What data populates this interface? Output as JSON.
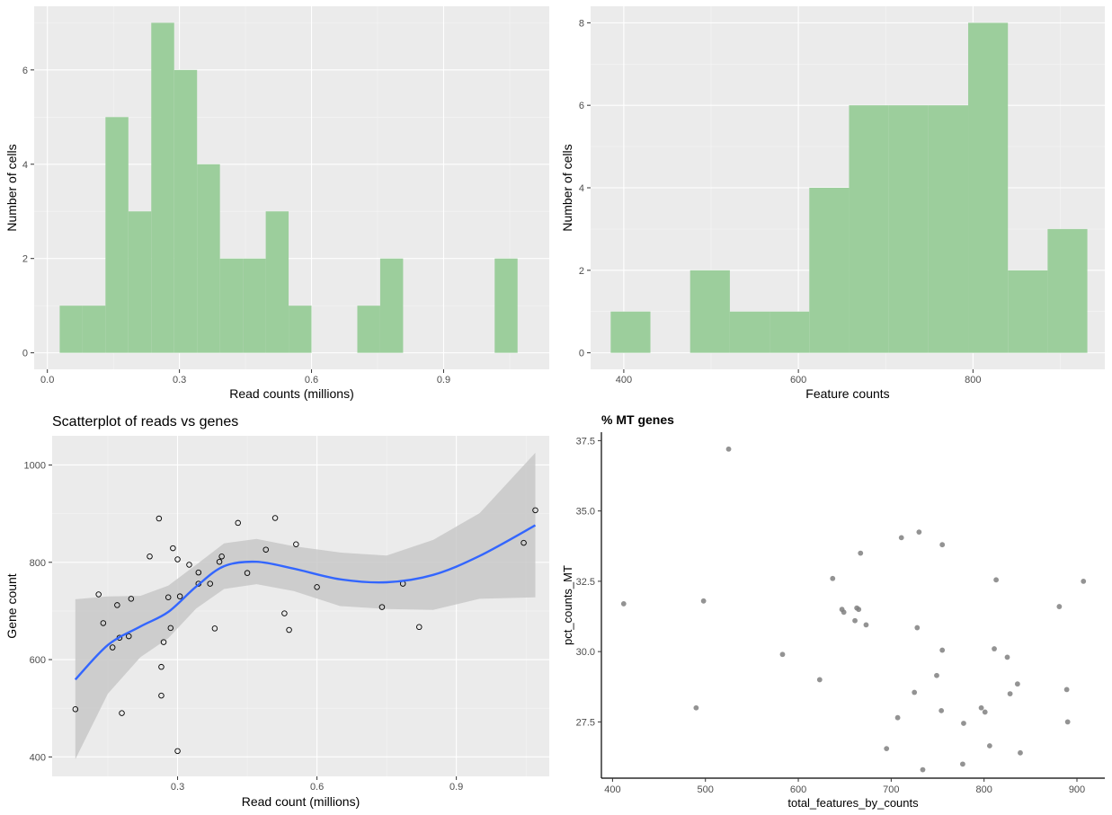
{
  "colors": {
    "panel_bg": "#EBEBEB",
    "grid_major": "#FFFFFF",
    "grid_minor": "#F5F5F5",
    "hist_fill": "#9CCE9C",
    "smooth_line": "#3366FF",
    "ribbon": "#C8C8C8",
    "scatter_point": "#808080"
  },
  "chart_data": [
    {
      "type": "bar",
      "subtype": "histogram",
      "title": "",
      "xlabel": "Read counts (millions)",
      "ylabel": "Number of cells",
      "xlim": [
        -0.03,
        1.14
      ],
      "ylim": [
        -0.35,
        7.35
      ],
      "x_ticks": [
        0.0,
        0.3,
        0.6,
        0.9
      ],
      "x_tick_labels": [
        "0.0",
        "0.3",
        "0.6",
        "0.9"
      ],
      "y_ticks": [
        0,
        2,
        4,
        6
      ],
      "y_tick_labels": [
        "0",
        "2",
        "4",
        "6"
      ],
      "bin_width": 0.052,
      "bins": [
        {
          "x0": 0.028,
          "x1": 0.08,
          "count": 1
        },
        {
          "x0": 0.08,
          "x1": 0.132,
          "count": 1
        },
        {
          "x0": 0.132,
          "x1": 0.184,
          "count": 5
        },
        {
          "x0": 0.184,
          "x1": 0.236,
          "count": 3
        },
        {
          "x0": 0.236,
          "x1": 0.288,
          "count": 7
        },
        {
          "x0": 0.288,
          "x1": 0.34,
          "count": 6
        },
        {
          "x0": 0.34,
          "x1": 0.392,
          "count": 4
        },
        {
          "x0": 0.392,
          "x1": 0.444,
          "count": 2
        },
        {
          "x0": 0.444,
          "x1": 0.496,
          "count": 2
        },
        {
          "x0": 0.496,
          "x1": 0.548,
          "count": 3
        },
        {
          "x0": 0.548,
          "x1": 0.6,
          "count": 1
        },
        {
          "x0": 0.6,
          "x1": 0.652,
          "count": 0
        },
        {
          "x0": 0.652,
          "x1": 0.704,
          "count": 0
        },
        {
          "x0": 0.704,
          "x1": 0.756,
          "count": 1
        },
        {
          "x0": 0.756,
          "x1": 0.808,
          "count": 2
        },
        {
          "x0": 0.808,
          "x1": 0.86,
          "count": 0
        },
        {
          "x0": 0.86,
          "x1": 0.912,
          "count": 0
        },
        {
          "x0": 0.912,
          "x1": 0.964,
          "count": 0
        },
        {
          "x0": 0.964,
          "x1": 1.016,
          "count": 0
        },
        {
          "x0": 1.016,
          "x1": 1.068,
          "count": 2
        }
      ]
    },
    {
      "type": "bar",
      "subtype": "histogram",
      "title": "",
      "xlabel": "Feature counts",
      "ylabel": "Number of cells",
      "xlim": [
        362,
        951
      ],
      "ylim": [
        -0.4,
        8.4
      ],
      "x_ticks": [
        400,
        600,
        800
      ],
      "x_tick_labels": [
        "400",
        "600",
        "800"
      ],
      "y_ticks": [
        0,
        2,
        4,
        6,
        8
      ],
      "y_tick_labels": [
        "0",
        "2",
        "4",
        "6",
        "8"
      ],
      "bin_width": 45.5,
      "bins": [
        {
          "x0": 385.0,
          "x1": 430.5,
          "count": 1
        },
        {
          "x0": 430.5,
          "x1": 476.0,
          "count": 0
        },
        {
          "x0": 476.0,
          "x1": 521.5,
          "count": 2
        },
        {
          "x0": 521.5,
          "x1": 567.0,
          "count": 1
        },
        {
          "x0": 567.0,
          "x1": 612.5,
          "count": 1
        },
        {
          "x0": 612.5,
          "x1": 658.0,
          "count": 4
        },
        {
          "x0": 658.0,
          "x1": 703.5,
          "count": 6
        },
        {
          "x0": 703.5,
          "x1": 749.0,
          "count": 6
        },
        {
          "x0": 749.0,
          "x1": 794.5,
          "count": 6
        },
        {
          "x0": 794.5,
          "x1": 840.0,
          "count": 8
        },
        {
          "x0": 840.0,
          "x1": 885.5,
          "count": 2
        },
        {
          "x0": 885.5,
          "x1": 931.0,
          "count": 3
        }
      ]
    },
    {
      "type": "scatter",
      "title": "Scatterplot of reads vs genes",
      "xlabel": "Read count (millions)",
      "ylabel": "Gene count",
      "xlim": [
        0.03,
        1.1
      ],
      "ylim": [
        360,
        1060
      ],
      "x_ticks": [
        0.3,
        0.6,
        0.9
      ],
      "x_tick_labels": [
        "0.3",
        "0.6",
        "0.9"
      ],
      "y_ticks": [
        400,
        600,
        800,
        1000
      ],
      "y_tick_labels": [
        "400",
        "600",
        "800",
        "1000"
      ],
      "points": [
        [
          0.08,
          498
        ],
        [
          0.13,
          734
        ],
        [
          0.14,
          675
        ],
        [
          0.16,
          625
        ],
        [
          0.17,
          712
        ],
        [
          0.175,
          645
        ],
        [
          0.18,
          490
        ],
        [
          0.195,
          648
        ],
        [
          0.2,
          725
        ],
        [
          0.24,
          812
        ],
        [
          0.26,
          890
        ],
        [
          0.265,
          585
        ],
        [
          0.265,
          526
        ],
        [
          0.27,
          636
        ],
        [
          0.28,
          728
        ],
        [
          0.285,
          665
        ],
        [
          0.29,
          829
        ],
        [
          0.3,
          806
        ],
        [
          0.3,
          412
        ],
        [
          0.305,
          730
        ],
        [
          0.325,
          795
        ],
        [
          0.345,
          779
        ],
        [
          0.345,
          756
        ],
        [
          0.37,
          756
        ],
        [
          0.38,
          664
        ],
        [
          0.39,
          801
        ],
        [
          0.395,
          812
        ],
        [
          0.43,
          881
        ],
        [
          0.45,
          778
        ],
        [
          0.49,
          826
        ],
        [
          0.51,
          891
        ],
        [
          0.53,
          695
        ],
        [
          0.54,
          661
        ],
        [
          0.555,
          837
        ],
        [
          0.6,
          749
        ],
        [
          0.74,
          708
        ],
        [
          0.785,
          756
        ],
        [
          0.82,
          667
        ],
        [
          1.045,
          840
        ],
        [
          1.07,
          907
        ]
      ],
      "smooth_fit": {
        "x": [
          0.08,
          0.15,
          0.22,
          0.28,
          0.34,
          0.4,
          0.47,
          0.55,
          0.65,
          0.75,
          0.85,
          0.95,
          1.07
        ],
        "y": [
          559,
          630,
          668,
          698,
          750,
          792,
          801,
          787,
          765,
          759,
          774,
          813,
          876
        ],
        "lower": [
          395,
          530,
          605,
          644,
          705,
          745,
          755,
          741,
          710,
          704,
          702,
          725,
          728
        ],
        "upper": [
          724,
          730,
          731,
          752,
          795,
          839,
          848,
          833,
          820,
          814,
          846,
          901,
          1025
        ]
      }
    },
    {
      "type": "scatter",
      "title": "% MT genes",
      "xlabel": "total_features_by_counts",
      "ylabel": "pct_counts_MT",
      "xlim": [
        388,
        930
      ],
      "ylim": [
        25.5,
        37.8
      ],
      "x_ticks": [
        400,
        500,
        600,
        700,
        800,
        900
      ],
      "x_tick_labels": [
        "400",
        "500",
        "600",
        "700",
        "800",
        "900"
      ],
      "y_ticks": [
        27.5,
        30.0,
        32.5,
        35.0,
        37.5
      ],
      "y_tick_labels": [
        "27.5",
        "30.0",
        "32.5",
        "35.0",
        "37.5"
      ],
      "points": [
        [
          412,
          31.7
        ],
        [
          490,
          28.0
        ],
        [
          498,
          31.8
        ],
        [
          525,
          37.2
        ],
        [
          583,
          29.9
        ],
        [
          623,
          29.0
        ],
        [
          637,
          32.6
        ],
        [
          647,
          31.5
        ],
        [
          649,
          31.4
        ],
        [
          661,
          31.1
        ],
        [
          663,
          31.55
        ],
        [
          665,
          31.5
        ],
        [
          667,
          33.5
        ],
        [
          673,
          30.95
        ],
        [
          695,
          26.55
        ],
        [
          707,
          27.65
        ],
        [
          711,
          34.05
        ],
        [
          725,
          28.55
        ],
        [
          728,
          30.85
        ],
        [
          730,
          34.25
        ],
        [
          734,
          25.8
        ],
        [
          749,
          29.15
        ],
        [
          754,
          27.9
        ],
        [
          755,
          30.05
        ],
        [
          755,
          33.8
        ],
        [
          777,
          26.0
        ],
        [
          778,
          27.45
        ],
        [
          797,
          28.0
        ],
        [
          801,
          27.85
        ],
        [
          806,
          26.65
        ],
        [
          811,
          30.1
        ],
        [
          813,
          32.55
        ],
        [
          825,
          29.8
        ],
        [
          828,
          28.5
        ],
        [
          836,
          28.85
        ],
        [
          839,
          26.4
        ],
        [
          881,
          31.6
        ],
        [
          889,
          28.65
        ],
        [
          890,
          27.5
        ],
        [
          907,
          32.5
        ]
      ]
    }
  ]
}
